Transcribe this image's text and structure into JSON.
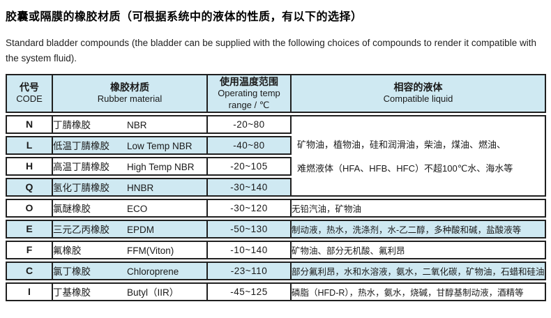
{
  "page": {
    "title": "胶囊或隔膜的橡胶材质（可根据系统中的液体的性质，有以下的选择）",
    "subtitle": "Standard bladder compounds (the bladder can be supplied with the following choices of compounds to render it compatible with the system fluid)."
  },
  "colors": {
    "shade": "#cfe9f2",
    "border": "#1f1f1f",
    "text": "#1a1a1a",
    "background": "#ffffff"
  },
  "table": {
    "headers": {
      "code": {
        "cn": "代号",
        "en": "CODE"
      },
      "material": {
        "cn": "橡胶材质",
        "en": "Rubber material"
      },
      "temp": {
        "cn": "使用温度范围",
        "en": "Operating temp",
        "en2": "range / ℃"
      },
      "liquid": {
        "cn": "相容的液体",
        "en": "Compatible liquid"
      }
    },
    "merged_liquid": {
      "applies_to_codes": [
        "N",
        "L",
        "H",
        "Q"
      ],
      "row_span": 4,
      "lines": [
        "矿物油，植物油，硅和润滑油，柴油，煤油、燃油、",
        "难燃液体（HFA、HFB、HFC）不超100℃水、海水等"
      ]
    },
    "rows": [
      {
        "code": "N",
        "material_cn": "丁腈橡胶",
        "material_en": "NBR",
        "temp": "-20~80"
      },
      {
        "code": "L",
        "material_cn": "低温丁腈橡胶",
        "material_en": "Low Temp NBR",
        "temp": "-40~80"
      },
      {
        "code": "H",
        "material_cn": "高温丁腈橡胶",
        "material_en": "High Temp NBR",
        "temp": "-20~105"
      },
      {
        "code": "Q",
        "material_cn": "氢化丁腈橡胶",
        "material_en": "HNBR",
        "temp": "-30~140"
      },
      {
        "code": "O",
        "material_cn": "氯醚橡胶",
        "material_en": "ECO",
        "temp": "-30~120",
        "liquid": "无铅汽油，矿物油"
      },
      {
        "code": "E",
        "material_cn": "三元乙丙橡胶",
        "material_en": "EPDM",
        "temp": "-50~130",
        "liquid": "制动液，热水，洗涤剂，水-乙二醇，多种酸和碱，盐酸液等"
      },
      {
        "code": "F",
        "material_cn": "氟橡胶",
        "material_en": "FFM(Viton)",
        "temp": "-10~140",
        "liquid": "矿物油、部分无机酸、氟利昂"
      },
      {
        "code": "C",
        "material_cn": "氯丁橡胶",
        "material_en": "Chloroprene",
        "temp": "-23~110",
        "liquid": "部分氟利昂，水和水溶液，氨水，二氧化碳，矿物油，石蜡和硅油"
      },
      {
        "code": "I",
        "material_cn": "丁基橡胶",
        "material_en": "Butyl（IIR）",
        "temp": "-45~125",
        "liquid": "磷脂（HFD-R），热水，氨水，烧碱，甘醇基制动液，酒精等"
      }
    ]
  }
}
